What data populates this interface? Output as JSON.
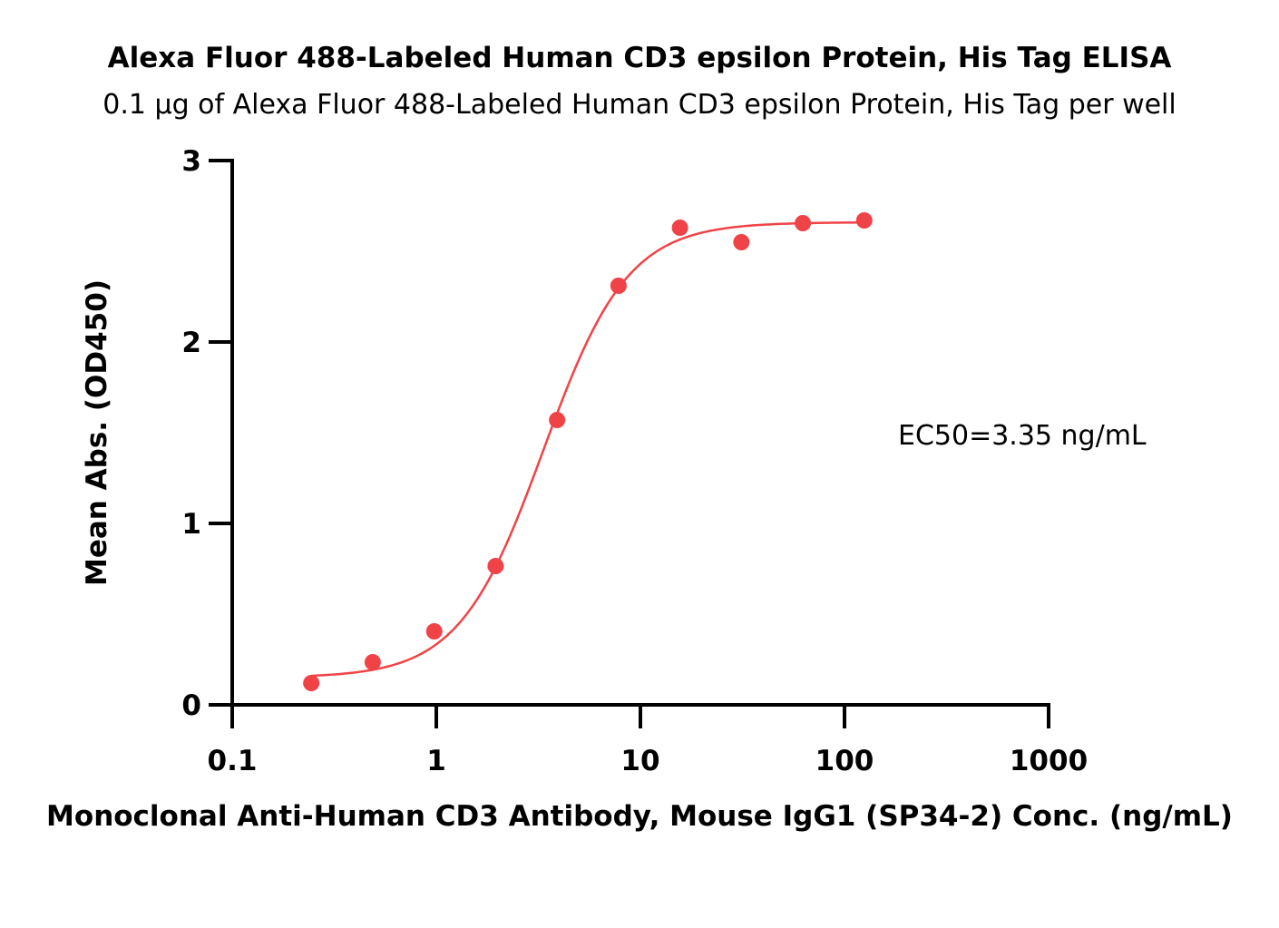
{
  "chart_data": {
    "type": "scatter",
    "title": "Alexa Fluor 488-Labeled Human CD3 epsilon Protein, His Tag ELISA",
    "subtitle": "0.1 μg of Alexa Fluor 488-Labeled Human CD3 epsilon Protein, His Tag per well",
    "xlabel": "Monoclonal Anti-Human CD3 Antibody, Mouse IgG1 (SP34-2) Conc. (ng/mL)",
    "ylabel": "Mean Abs. (OD450)",
    "xscale": "log",
    "xlim": [
      0.1,
      1000
    ],
    "ylim": [
      0,
      3
    ],
    "xticks": [
      0.1,
      1,
      10,
      100,
      1000
    ],
    "xtick_labels": [
      "0.1",
      "1",
      "10",
      "100",
      "1000"
    ],
    "yticks": [
      0,
      1,
      2,
      3
    ],
    "ytick_labels": [
      "0",
      "1",
      "2",
      "3"
    ],
    "grid": false,
    "series": [
      {
        "color": "#f04347",
        "x": [
          0.244,
          0.488,
          0.977,
          1.953,
          3.906,
          7.813,
          15.625,
          31.25,
          62.5,
          125
        ],
        "y": [
          0.12,
          0.235,
          0.405,
          0.765,
          1.57,
          2.31,
          2.63,
          2.55,
          2.655,
          2.67
        ],
        "fit": {
          "model": "4PL",
          "bottom": 0.15,
          "top": 2.66,
          "ec50": 3.35,
          "hill": 2.1,
          "x_range": [
            0.244,
            125
          ]
        }
      }
    ],
    "annotation": "EC50=3.35 ng/mL"
  }
}
